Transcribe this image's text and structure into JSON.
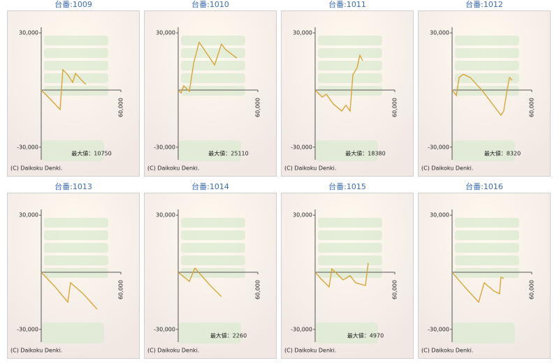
{
  "chart_data": [
    {
      "type": "line",
      "title": "台番:1009",
      "x": [
        0,
        6300,
        14200,
        16300,
        20000,
        23700,
        25800,
        29500,
        33700
      ],
      "values": [
        0,
        -4400,
        -10200,
        10700,
        8000,
        4000,
        8800,
        5900,
        2900
      ],
      "color": "#d9a02c",
      "xlim": [
        0,
        60000
      ],
      "xticks": [
        {
          "value": 60000,
          "label": "60,000"
        }
      ],
      "ylim": [
        -33000,
        33000
      ],
      "yticks": [
        {
          "value": 30000,
          "label": "30,000"
        },
        {
          "value": -30000,
          "label": "-30,000"
        }
      ],
      "annotation": "最大値：10750",
      "credit": "(C) Daikoku Denki."
    },
    {
      "type": "line",
      "title": "台番:1010",
      "x": [
        0,
        2100,
        4200,
        8400,
        11600,
        15800,
        27400,
        32600,
        35800,
        44200
      ],
      "values": [
        0,
        -1500,
        2200,
        -700,
        13900,
        25100,
        13200,
        24100,
        21200,
        16800
      ],
      "color": "#d9a02c",
      "xlim": [
        0,
        60000
      ],
      "xticks": [
        {
          "value": 60000,
          "label": "60,000"
        }
      ],
      "ylim": [
        -33000,
        33000
      ],
      "yticks": [
        {
          "value": 30000,
          "label": "30,000"
        },
        {
          "value": -30000,
          "label": "-30,000"
        }
      ],
      "annotation": "最大値：25110",
      "credit": "(C) Daikoku Denki."
    },
    {
      "type": "line",
      "title": "台番:1011",
      "x": [
        0,
        5300,
        8400,
        13700,
        20000,
        23200,
        26300,
        28400,
        31600,
        33700,
        35800
      ],
      "values": [
        0,
        -3700,
        -2200,
        -7300,
        -11000,
        -8000,
        -11000,
        8000,
        11700,
        18300,
        15400
      ],
      "color": "#d9a02c",
      "xlim": [
        0,
        60000
      ],
      "xticks": [
        {
          "value": 60000,
          "label": "60,000"
        }
      ],
      "ylim": [
        -33000,
        33000
      ],
      "yticks": [
        {
          "value": 30000,
          "label": "30,000"
        },
        {
          "value": -30000,
          "label": "-30,000"
        }
      ],
      "annotation": "最大値：18380",
      "credit": "(C) Daikoku Denki."
    },
    {
      "type": "line",
      "title": "台番:1012",
      "x": [
        0,
        3200,
        5300,
        8400,
        13700,
        23200,
        36800,
        38900,
        41100,
        43200,
        45300
      ],
      "values": [
        0,
        -2900,
        6600,
        8300,
        6600,
        -700,
        -13200,
        -11000,
        -1500,
        6600,
        5100
      ],
      "color": "#d9a02c",
      "xlim": [
        0,
        60000
      ],
      "xticks": [
        {
          "value": 60000,
          "label": "60,000"
        }
      ],
      "ylim": [
        -33000,
        33000
      ],
      "yticks": [
        {
          "value": 30000,
          "label": "30,000"
        },
        {
          "value": -30000,
          "label": "-30,000"
        }
      ],
      "annotation": "最大値：8320",
      "credit": "(C) Daikoku Denki."
    },
    {
      "type": "line",
      "title": "台番:1013",
      "x": [
        0,
        10500,
        20000,
        22100,
        31600,
        42100
      ],
      "values": [
        0,
        -7700,
        -15700,
        -5500,
        -11300,
        -19400
      ],
      "color": "#d9a02c",
      "xlim": [
        0,
        60000
      ],
      "xticks": [
        {
          "value": 60000,
          "label": "60,000"
        }
      ],
      "ylim": [
        -33000,
        33000
      ],
      "yticks": [
        {
          "value": 30000,
          "label": "30,000"
        },
        {
          "value": -30000,
          "label": "-30,000"
        }
      ],
      "credit": "(C) Daikoku Denki."
    },
    {
      "type": "line",
      "title": "台番:1014",
      "x": [
        0,
        8400,
        12600,
        24200,
        32600
      ],
      "values": [
        0,
        -4800,
        2200,
        -7000,
        -12800
      ],
      "color": "#d9a02c",
      "xlim": [
        0,
        60000
      ],
      "xticks": [
        {
          "value": 60000,
          "label": "60,000"
        }
      ],
      "ylim": [
        -33000,
        33000
      ],
      "yticks": [
        {
          "value": 30000,
          "label": "30,000"
        },
        {
          "value": -30000,
          "label": "-30,000"
        }
      ],
      "annotation": "最大値：2260",
      "credit": "(C) Daikoku Denki."
    },
    {
      "type": "line",
      "title": "台番:1015",
      "x": [
        0,
        4200,
        10500,
        12600,
        21100,
        26300,
        30500,
        37900,
        40000
      ],
      "values": [
        0,
        -3300,
        -7700,
        1800,
        -4000,
        -1800,
        -5500,
        -7000,
        4900
      ],
      "color": "#d9a02c",
      "xlim": [
        0,
        60000
      ],
      "xticks": [
        {
          "value": 60000,
          "label": "60,000"
        }
      ],
      "ylim": [
        -33000,
        33000
      ],
      "yticks": [
        {
          "value": 30000,
          "label": "30,000"
        },
        {
          "value": -30000,
          "label": "-30,000"
        }
      ],
      "annotation": "最大値：4970",
      "credit": "(C) Daikoku Denki."
    },
    {
      "type": "line",
      "title": "台番:1016",
      "x": [
        0,
        9500,
        20000,
        24200,
        31600,
        35800,
        36800,
        38900
      ],
      "values": [
        0,
        -7700,
        -15700,
        -5500,
        -9900,
        -11300,
        -2600,
        -3300
      ],
      "color": "#d9a02c",
      "xlim": [
        0,
        60000
      ],
      "xticks": [
        {
          "value": 60000,
          "label": "60,000"
        }
      ],
      "ylim": [
        -33000,
        33000
      ],
      "yticks": [
        {
          "value": 30000,
          "label": "30,000"
        },
        {
          "value": -30000,
          "label": "-30,000"
        }
      ],
      "credit": "(C) Daikoku Denki."
    }
  ]
}
